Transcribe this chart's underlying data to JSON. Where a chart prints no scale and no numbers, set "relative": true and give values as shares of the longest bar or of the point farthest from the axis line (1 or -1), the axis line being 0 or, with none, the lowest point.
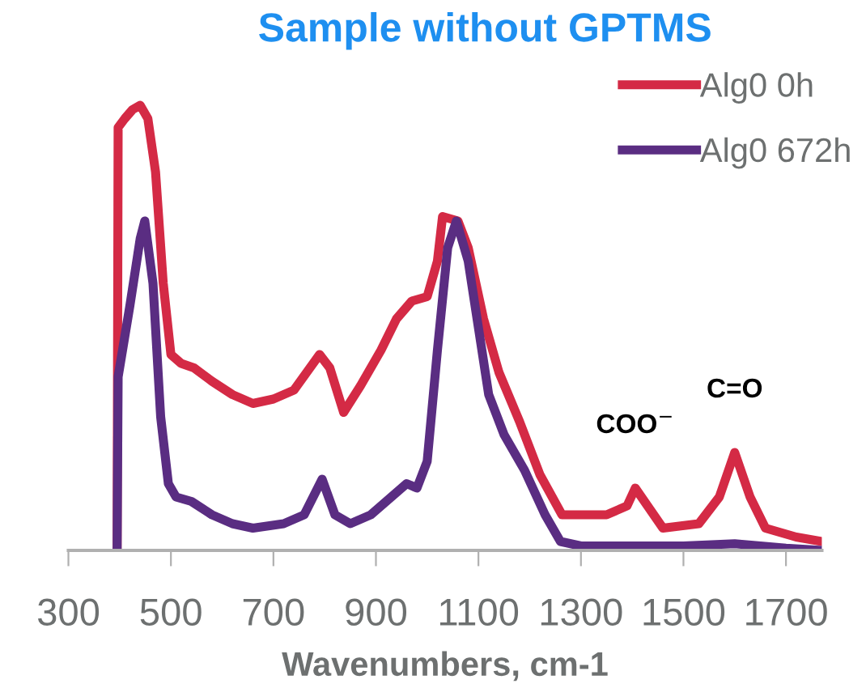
{
  "chart_data": {
    "type": "line",
    "title": "Sample without GPTMS",
    "xlabel": "Wavenumbers, cm-1",
    "relative": true,
    "xlim": [
      300,
      1770
    ],
    "xticks": [
      300,
      500,
      700,
      900,
      1100,
      1300,
      1500,
      1700
    ],
    "grid": false,
    "legend": "top right",
    "line_style": "solid",
    "marker": "none",
    "annotations": [
      {
        "text": "COO$^{−}$",
        "x": 1406,
        "y": 0.14
      },
      {
        "text": "C=O",
        "x": 1600,
        "y": 0.22
      }
    ],
    "series": [
      {
        "name": "Alg0 0h",
        "color": "#d42a45",
        "x": [
          395,
          397,
          410,
          425,
          440,
          455,
          470,
          485,
          500,
          520,
          545,
          580,
          620,
          660,
          700,
          740,
          790,
          810,
          837,
          870,
          910,
          940,
          970,
          1000,
          1020,
          1030,
          1060,
          1080,
          1110,
          1140,
          1180,
          1220,
          1263,
          1300,
          1350,
          1390,
          1406,
          1430,
          1460,
          1530,
          1570,
          1600,
          1630,
          1660,
          1720,
          1770
        ],
        "values": [
          0.0,
          0.95,
          0.97,
          0.99,
          1.0,
          0.97,
          0.85,
          0.6,
          0.44,
          0.42,
          0.41,
          0.38,
          0.35,
          0.33,
          0.34,
          0.36,
          0.44,
          0.41,
          0.31,
          0.37,
          0.45,
          0.52,
          0.56,
          0.57,
          0.65,
          0.75,
          0.74,
          0.68,
          0.52,
          0.4,
          0.29,
          0.17,
          0.08,
          0.08,
          0.08,
          0.1,
          0.14,
          0.1,
          0.05,
          0.06,
          0.12,
          0.22,
          0.12,
          0.05,
          0.03,
          0.02
        ]
      },
      {
        "name": "Alg0 672h",
        "color": "#5a2d82",
        "x": [
          395,
          397,
          420,
          440,
          449,
          465,
          480,
          495,
          510,
          540,
          580,
          620,
          660,
          720,
          760,
          795,
          820,
          850,
          890,
          930,
          960,
          980,
          1000,
          1020,
          1040,
          1057,
          1080,
          1100,
          1120,
          1150,
          1190,
          1230,
          1260,
          1300,
          1500,
          1600,
          1700,
          1770
        ],
        "values": [
          0.0,
          0.39,
          0.55,
          0.7,
          0.74,
          0.6,
          0.3,
          0.15,
          0.12,
          0.11,
          0.08,
          0.06,
          0.05,
          0.06,
          0.08,
          0.16,
          0.08,
          0.06,
          0.08,
          0.12,
          0.15,
          0.14,
          0.2,
          0.45,
          0.68,
          0.74,
          0.65,
          0.5,
          0.35,
          0.26,
          0.18,
          0.08,
          0.02,
          0.01,
          0.01,
          0.015,
          0.005,
          0.0
        ]
      }
    ]
  }
}
